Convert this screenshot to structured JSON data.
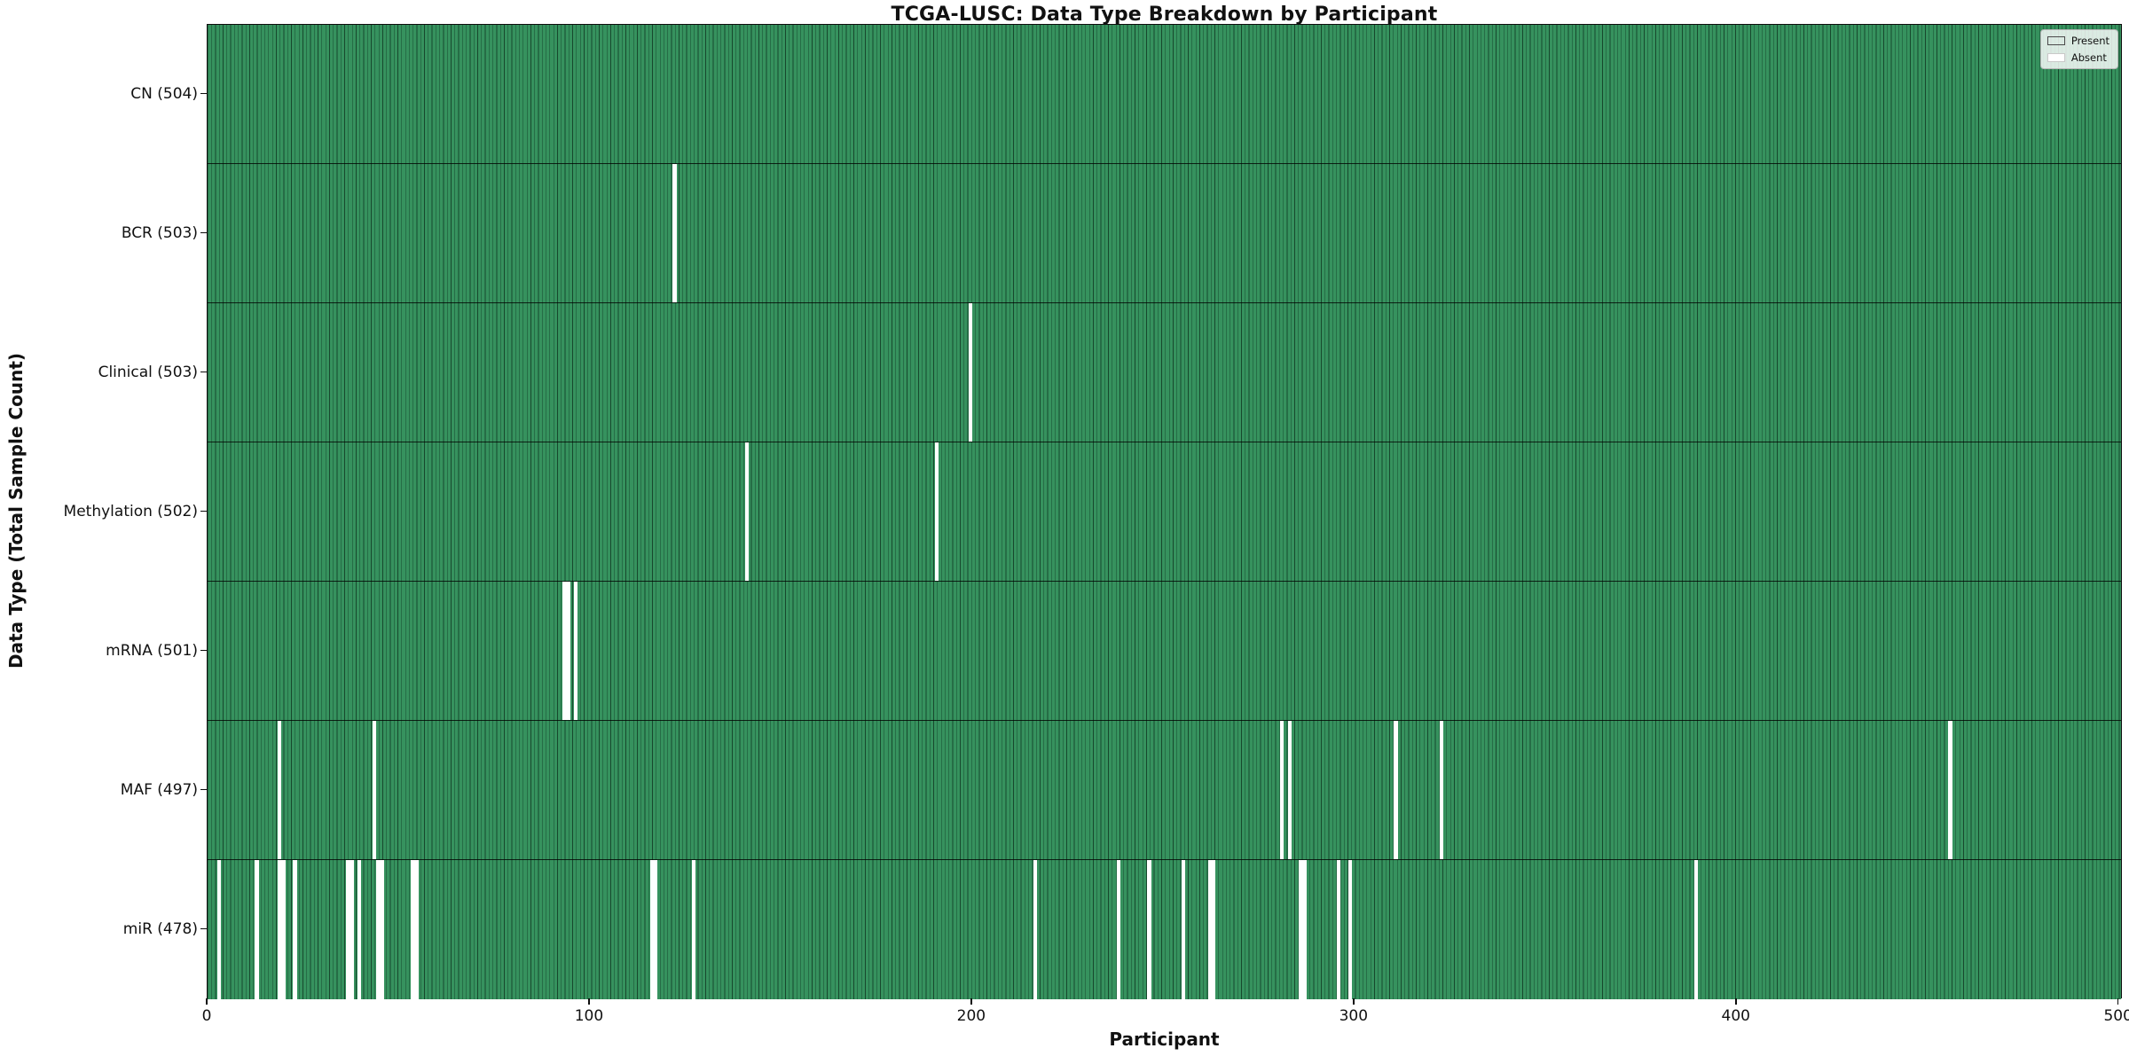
{
  "title": "TCGA-LUSC: Data Type Breakdown by Participant",
  "chart_data": {
    "type": "heatmap",
    "subtype": "presence-absence-barcode",
    "title": "TCGA-LUSC: Data Type Breakdown by Participant",
    "xlabel": "Participant",
    "ylabel": "Data Type (Total Sample Count)",
    "n_participants": 504,
    "xlim": [
      0,
      501
    ],
    "x_ticks": [
      "0",
      "100",
      "200",
      "300",
      "400",
      "500"
    ],
    "x_tick_values": [
      0,
      100,
      200,
      300,
      400,
      500
    ],
    "grid": false,
    "legend": {
      "position": "upper right",
      "entries": [
        {
          "label": "Present",
          "color": "#36925e"
        },
        {
          "label": "Absent",
          "color": "#ffffff"
        }
      ]
    },
    "colors": {
      "present_fill": "#36925e",
      "bar_edge": "#17482d",
      "absent_fill": "#ffffff",
      "axis": "#0d0d0d"
    },
    "rows": [
      {
        "label": "CN",
        "total": 504,
        "display": "CN (504)",
        "absent_participants": []
      },
      {
        "label": "BCR",
        "total": 503,
        "display": "BCR (503)",
        "absent_participants": [
          123
        ]
      },
      {
        "label": "Clinical",
        "total": 503,
        "display": "Clinical (503)",
        "absent_participants": [
          201
        ]
      },
      {
        "label": "Methylation",
        "total": 502,
        "display": "Methylation (502)",
        "absent_participants": [
          142,
          192
        ]
      },
      {
        "label": "mRNA",
        "total": 501,
        "display": "mRNA (501)",
        "absent_participants": [
          94,
          95,
          97
        ]
      },
      {
        "label": "MAF",
        "total": 497,
        "display": "MAF (497)",
        "absent_participants": [
          19,
          44,
          283,
          285,
          313,
          325,
          459
        ]
      },
      {
        "label": "miR",
        "total": 478,
        "display": "miR (478)",
        "absent_participants": [
          3,
          13,
          19,
          20,
          23,
          37,
          38,
          40,
          45,
          46,
          54,
          55,
          117,
          118,
          128,
          218,
          240,
          248,
          257,
          264,
          265,
          288,
          289,
          298,
          301,
          392
        ]
      }
    ]
  }
}
